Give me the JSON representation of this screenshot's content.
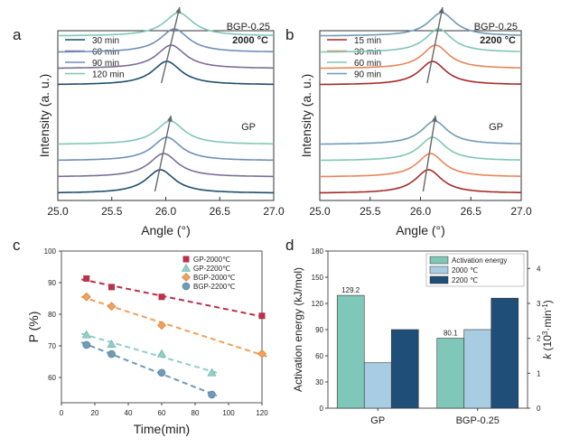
{
  "chart_data": [
    {
      "panel": "a",
      "type": "line",
      "title": "2000 °C",
      "xlabel": "Angle (°)",
      "ylabel": "Intensity (a. u.)",
      "xlim": [
        25.0,
        27.0
      ],
      "xticks": [
        "25.0",
        "25.5",
        "26.0",
        "26.5",
        "27.0"
      ],
      "y_ticks_shown": false,
      "legend": [
        "30 min",
        "60 min",
        "90 min",
        "120 min"
      ],
      "series_colors": [
        "#1f4e6b",
        "#7b6f97",
        "#6f8fb8",
        "#7fc7b4"
      ],
      "groups": [
        {
          "label": "BGP-0.25",
          "series": [
            {
              "name": "30 min",
              "peak_angle": 26.01
            },
            {
              "name": "60 min",
              "peak_angle": 26.05
            },
            {
              "name": "90 min",
              "peak_angle": 26.08
            },
            {
              "name": "120 min",
              "peak_angle": 26.12
            }
          ]
        },
        {
          "label": "GP",
          "series": [
            {
              "name": "30 min",
              "peak_angle": 25.95
            },
            {
              "name": "60 min",
              "peak_angle": 25.98
            },
            {
              "name": "90 min",
              "peak_angle": 26.01
            },
            {
              "name": "120 min",
              "peak_angle": 26.04
            }
          ]
        }
      ]
    },
    {
      "panel": "b",
      "type": "line",
      "title": "2200 °C",
      "xlabel": "Angle (°)",
      "ylabel": "Intensity (a. u.)",
      "xlim": [
        25.0,
        27.0
      ],
      "xticks": [
        "25.0",
        "25.5",
        "26.0",
        "26.5",
        "27.0"
      ],
      "y_ticks_shown": false,
      "legend": [
        "15 min",
        "30 min",
        "60 min",
        "90 min"
      ],
      "series_colors": [
        "#a52a2a",
        "#e8855a",
        "#7fc7b4",
        "#6f9ab8"
      ],
      "groups": [
        {
          "label": "BGP-0.25",
          "series": [
            {
              "name": "15 min",
              "peak_angle": 26.12
            },
            {
              "name": "30 min",
              "peak_angle": 26.15
            },
            {
              "name": "60 min",
              "peak_angle": 26.18
            },
            {
              "name": "90 min",
              "peak_angle": 26.21
            }
          ]
        },
        {
          "label": "GP",
          "series": [
            {
              "name": "15 min",
              "peak_angle": 26.08
            },
            {
              "name": "30 min",
              "peak_angle": 26.1
            },
            {
              "name": "60 min",
              "peak_angle": 26.12
            },
            {
              "name": "90 min",
              "peak_angle": 26.14
            }
          ]
        }
      ]
    },
    {
      "panel": "c",
      "type": "scatter",
      "xlabel": "Time(min)",
      "ylabel": "P (%)",
      "xlim": [
        0,
        120
      ],
      "ylim": [
        52,
        100
      ],
      "xticks": [
        0,
        20,
        40,
        60,
        80,
        100,
        120
      ],
      "yticks": [
        60,
        70,
        80,
        90,
        100
      ],
      "legend_position": "top-right",
      "series": [
        {
          "name": "GP-2000℃",
          "marker": "square",
          "color": "#b8324a",
          "x": [
            15,
            30,
            60,
            120
          ],
          "y": [
            91.3,
            88.6,
            85.5,
            79.5
          ]
        },
        {
          "name": "GP-2200℃",
          "marker": "triangle",
          "color": "#8fcfc9",
          "x": [
            15,
            30,
            60,
            90
          ],
          "y": [
            73.5,
            70.5,
            67.5,
            61.5
          ]
        },
        {
          "name": "BGP-2000℃",
          "marker": "diamond",
          "color": "#f2a05a",
          "x": [
            15,
            30,
            60,
            120
          ],
          "y": [
            85.5,
            82.5,
            76.5,
            67.5
          ]
        },
        {
          "name": "BGP-2200℃",
          "marker": "circle",
          "color": "#6f9ab8",
          "x": [
            15,
            30,
            60,
            90
          ],
          "y": [
            70.3,
            67.4,
            61.5,
            54.6
          ]
        }
      ]
    },
    {
      "panel": "d",
      "type": "bar",
      "categories": [
        "GP",
        "BGP-0.25"
      ],
      "ylabel_left": "Activation energy (kJ/mol)",
      "ylabel_right_prefix": "k",
      "ylabel_right_units": "(10",
      "ylabel_right_exp": "3",
      "ylabel_right_tail": "·min",
      "ylabel_right_exp2": "-1",
      "ylabel_right_close": ")",
      "ylim_left": [
        0,
        180
      ],
      "yticks_left": [
        0,
        30,
        60,
        90,
        120,
        150,
        180
      ],
      "ylim_right": [
        0,
        4.5
      ],
      "yticks_right": [
        0,
        1,
        2,
        3,
        4
      ],
      "legend_position": "top-right",
      "series": [
        {
          "name": "Activation energy",
          "axis": "left",
          "color": "#7fc7b8",
          "values": [
            129.2,
            80.1
          ],
          "labels": [
            "129.2",
            "80.1"
          ]
        },
        {
          "name": "2000 ℃",
          "axis": "right",
          "color": "#a8cde3",
          "values": [
            1.3,
            2.25
          ]
        },
        {
          "name": "2200 ℃",
          "axis": "right",
          "color": "#1f4e78",
          "values": [
            2.25,
            3.15
          ]
        }
      ]
    }
  ]
}
